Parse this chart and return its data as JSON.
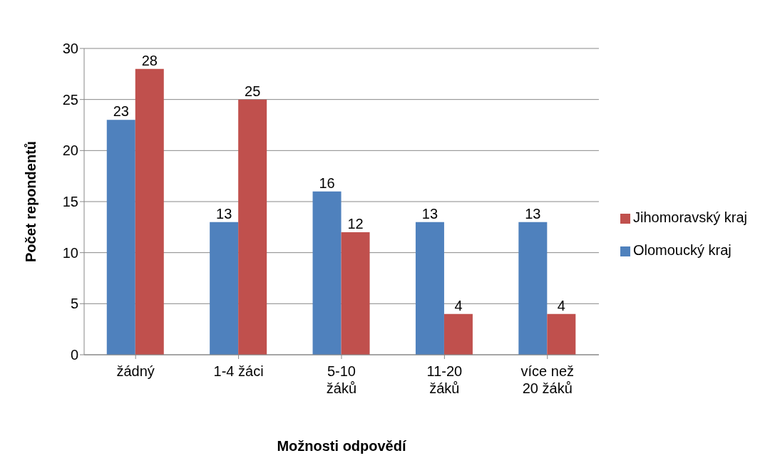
{
  "chart_data": {
    "type": "bar",
    "xlabel": "Možnosti odpovědí",
    "ylabel": "Počet repondentů",
    "categories": [
      "žádný",
      "1-4 žáci",
      "5-10 žáků",
      "11-20 žáků",
      "více než 20 žáků"
    ],
    "series": [
      {
        "name": "Olomoucký kraj",
        "color": "#4f81bd",
        "values": [
          23,
          13,
          16,
          13,
          13
        ]
      },
      {
        "name": "Jihomoravský kraj",
        "color": "#c0504d",
        "values": [
          28,
          25,
          12,
          4,
          4
        ]
      }
    ],
    "ylim": [
      0,
      30
    ],
    "yticks": [
      0,
      5,
      10,
      15,
      20,
      25,
      30
    ],
    "grid": "y",
    "legend": "right",
    "data_labels": true
  }
}
